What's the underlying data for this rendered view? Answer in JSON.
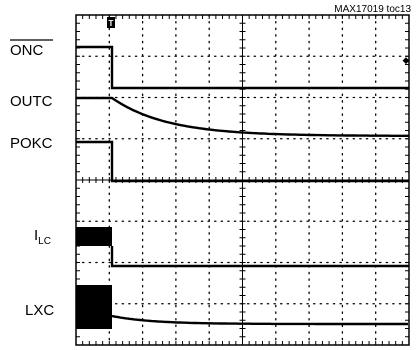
{
  "chart_data": {
    "type": "line",
    "caption": "MAX17019 toc13",
    "grid": {
      "divisions_x": 10,
      "divisions_y": 8,
      "visible": true
    },
    "channels": [
      {
        "name": "ONC",
        "overbar": true,
        "label_main": "ONC",
        "label_sub": ""
      },
      {
        "name": "OUTC",
        "overbar": false,
        "label_main": "OUTC",
        "label_sub": ""
      },
      {
        "name": "POKC",
        "overbar": false,
        "label_main": "POKC",
        "label_sub": ""
      },
      {
        "name": "ILC",
        "overbar": false,
        "label_main": "I",
        "label_sub": "LC"
      },
      {
        "name": "LXC",
        "overbar": false,
        "label_main": "LXC",
        "label_sub": ""
      }
    ],
    "trigger_marker": "T",
    "level_marker": "◆"
  }
}
